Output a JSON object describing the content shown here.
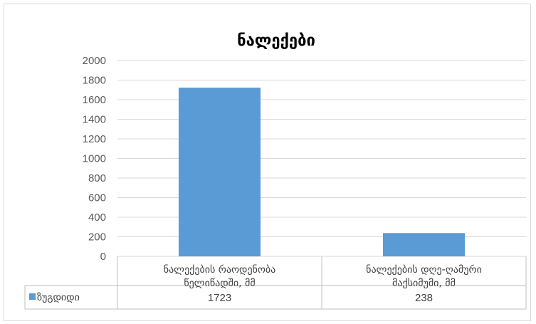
{
  "chart_data": {
    "type": "bar",
    "title": "ნალექები",
    "categories": [
      [
        "ნალექების რაოდენობა",
        "წელიწადში, მმ"
      ],
      [
        "ნალექების დღე-ღამური",
        "მაქსიმუმი, მმ"
      ]
    ],
    "series": [
      {
        "name": "ზუგდიდი",
        "values": [
          1723,
          238
        ],
        "color": "#5b9bd5"
      }
    ],
    "ylim": [
      0,
      2000
    ],
    "yticks": [
      0,
      200,
      400,
      600,
      800,
      1000,
      1200,
      1400,
      1600,
      1800,
      2000
    ],
    "grid": true,
    "data_table": true
  }
}
